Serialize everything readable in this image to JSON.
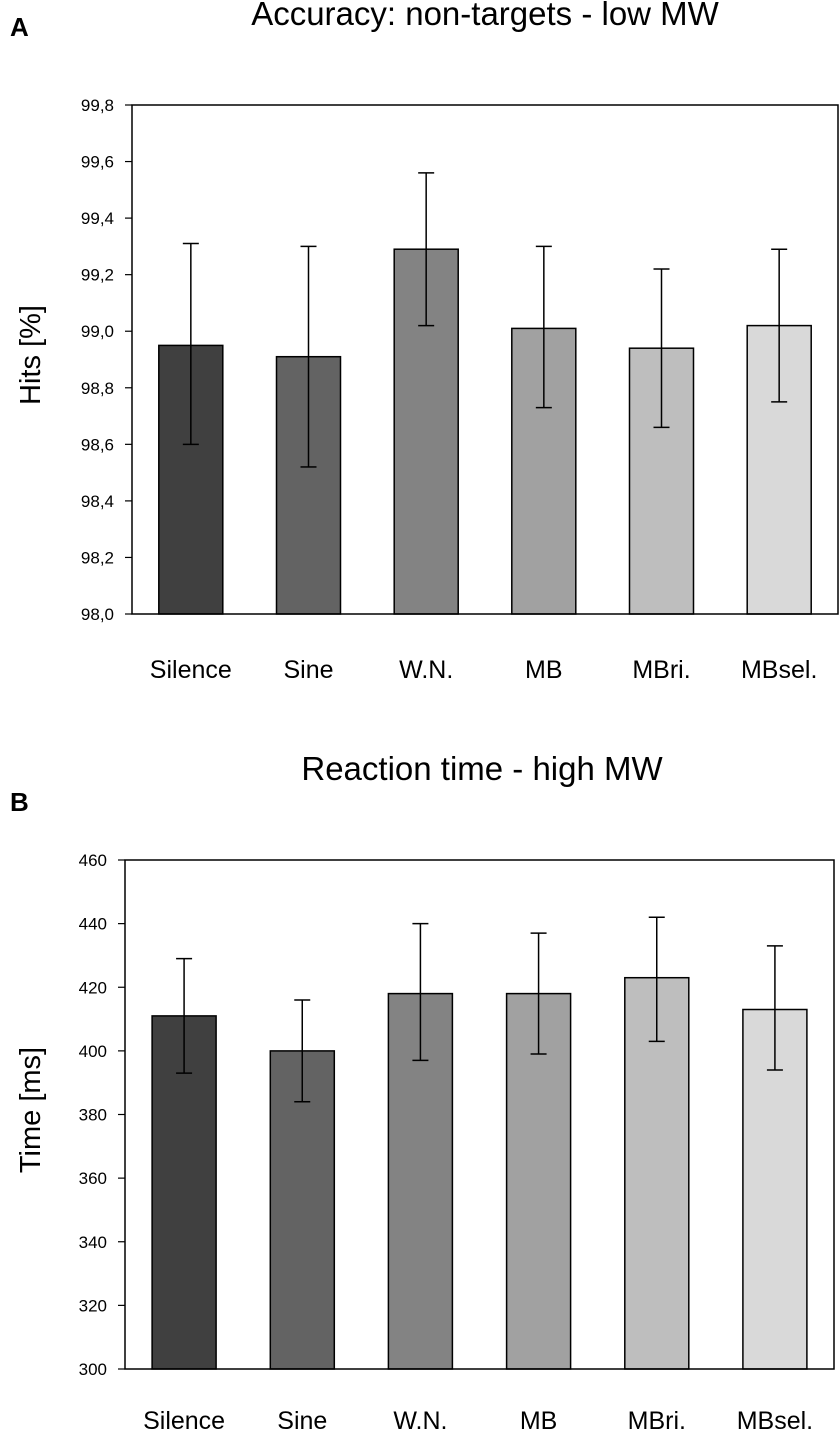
{
  "chart_data": [
    {
      "type": "bar",
      "panel": "A",
      "title": "Accuracy: non-targets - low MW",
      "xlabel": "",
      "ylabel": "Hits [%]",
      "ylim": [
        98.0,
        99.8
      ],
      "yticks": [
        "98,0",
        "98,2",
        "98,4",
        "98,6",
        "98,8",
        "99,0",
        "99,2",
        "99,4",
        "99,6",
        "99,8"
      ],
      "grid": false,
      "categories": [
        "Silence",
        "Sine",
        "W.N.",
        "MB",
        "MBri.",
        "MBsel."
      ],
      "values": [
        98.95,
        98.91,
        99.29,
        99.01,
        98.94,
        99.02
      ],
      "error_upper": [
        99.31,
        99.3,
        99.56,
        99.3,
        99.22,
        99.29
      ],
      "error_lower": [
        98.6,
        98.52,
        99.02,
        98.73,
        98.66,
        98.75
      ],
      "colors": [
        "#404040",
        "#636363",
        "#838383",
        "#a1a1a1",
        "#bebebe",
        "#d9d9d9"
      ]
    },
    {
      "type": "bar",
      "panel": "B",
      "title": "Reaction time - high MW",
      "xlabel": "",
      "ylabel": "Time [ms]",
      "ylim": [
        300,
        460
      ],
      "yticks": [
        "300",
        "320",
        "340",
        "360",
        "380",
        "400",
        "420",
        "440",
        "460"
      ],
      "grid": false,
      "categories": [
        "Silence",
        "Sine",
        "W.N.",
        "MB",
        "MBri.",
        "MBsel."
      ],
      "values": [
        411,
        400,
        418,
        418,
        423,
        413
      ],
      "error_upper": [
        429,
        416,
        440,
        437,
        442,
        433
      ],
      "error_lower": [
        393,
        384,
        397,
        399,
        403,
        394
      ],
      "colors": [
        "#404040",
        "#636363",
        "#838383",
        "#a1a1a1",
        "#bebebe",
        "#d9d9d9"
      ]
    }
  ]
}
